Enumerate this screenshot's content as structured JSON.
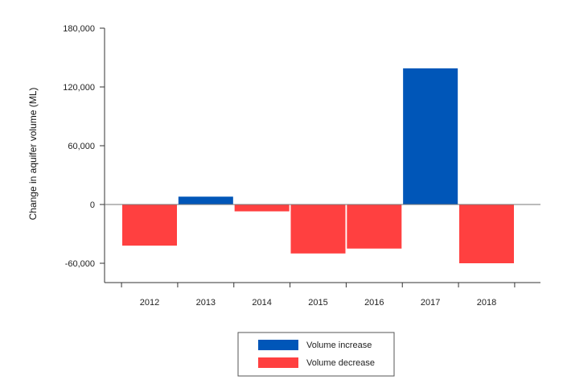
{
  "chart_data": {
    "type": "bar",
    "title": "",
    "xlabel": "",
    "ylabel": "Change in aquifer volume (ML)",
    "categories": [
      "2012",
      "2013",
      "2014",
      "2015",
      "2016",
      "2017",
      "2018"
    ],
    "values": [
      -42000,
      8000,
      -7000,
      -50000,
      -45000,
      139000,
      -60000
    ],
    "ylim": [
      -80000,
      180000
    ],
    "yticks": [
      -60000,
      0,
      60000,
      120000,
      180000
    ],
    "ytick_labels": [
      "-60,000",
      "0",
      "60,000",
      "120,000",
      "180,000"
    ],
    "grid": false,
    "legend": {
      "placement": "bottom-center",
      "entries": [
        {
          "label": "Volume increase",
          "color": "#0056b8"
        },
        {
          "label": "Volume decrease",
          "color": "#ff4040"
        }
      ]
    },
    "colors": {
      "increase": "#0056b8",
      "decrease": "#ff4040"
    }
  }
}
